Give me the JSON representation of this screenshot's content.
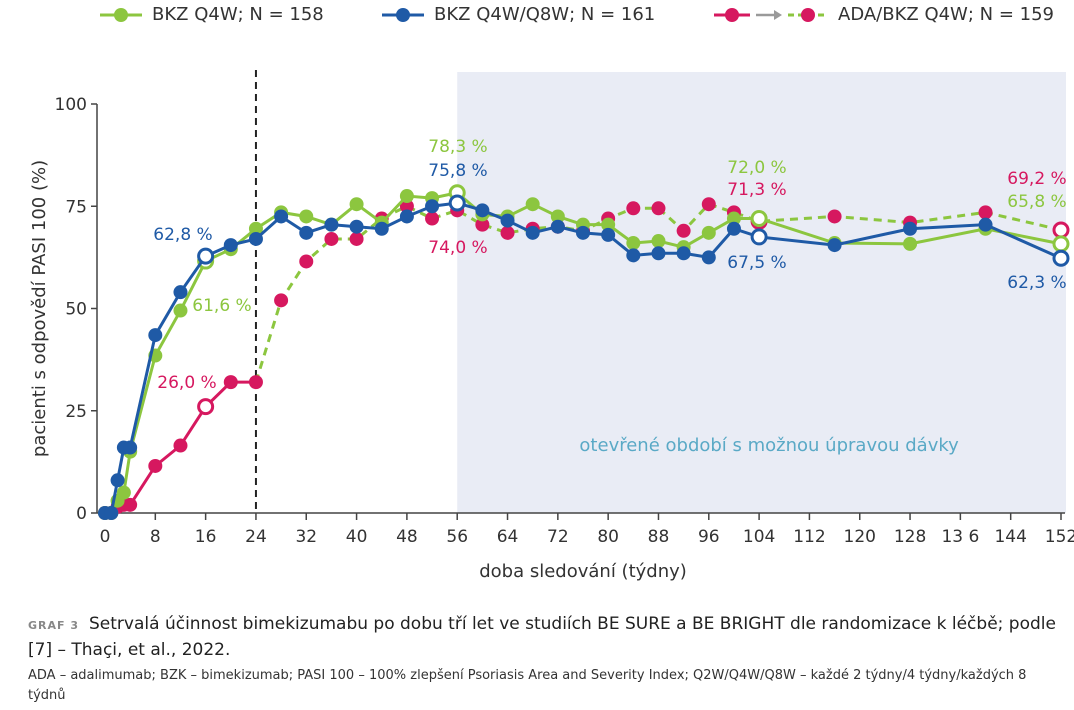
{
  "chart_data": {
    "type": "line",
    "title": "",
    "xlabel": "doba sledování (týdny)",
    "ylabel": "pacienti s odpovědí PASI 100 (%)",
    "xlim": [
      0,
      152
    ],
    "ylim": [
      0,
      100
    ],
    "x_ticks": [
      0,
      8,
      16,
      24,
      32,
      40,
      48,
      56,
      64,
      72,
      80,
      88,
      96,
      104,
      112,
      120,
      128,
      136,
      144,
      152
    ],
    "x_tick_labels": [
      "0",
      "8",
      "16",
      "24",
      "32",
      "40",
      "48",
      "56",
      "64",
      "72",
      "80",
      "88",
      "96",
      "104",
      "112",
      "120",
      "128",
      "13 6",
      "144",
      "152"
    ],
    "y_ticks": [
      0,
      25,
      50,
      75,
      100
    ],
    "y_tick_labels": [
      "0",
      "25",
      "50",
      "75",
      "100"
    ],
    "vline_week": 24,
    "shaded_region": {
      "from": 56,
      "to": 152,
      "label": "otevřené období s možnou úpravou dávky"
    },
    "series": [
      {
        "name": "BKZ Q4W; N = 158",
        "color": "#8cc63f",
        "style": "solid",
        "x": [
          0,
          1,
          2,
          3,
          4,
          8,
          12,
          16,
          20,
          24,
          28,
          32,
          36,
          40,
          44,
          48,
          52,
          56,
          60,
          64,
          68,
          72,
          76,
          80,
          84,
          88,
          92,
          96,
          100,
          104,
          116,
          128,
          140,
          152
        ],
        "y": [
          0,
          0,
          3,
          5,
          15,
          38.5,
          49.5,
          61.6,
          64.5,
          69.5,
          73.5,
          72.5,
          70.5,
          75.5,
          71,
          77.5,
          77,
          78.3,
          73,
          72.5,
          75.5,
          72.5,
          70.5,
          70.5,
          66,
          66.5,
          65,
          68.5,
          72.0,
          72.0,
          66,
          65.8,
          69.5,
          65.8
        ],
        "hollow": [
          16,
          56,
          104,
          152
        ]
      },
      {
        "name": "BKZ Q4W/Q8W; N = 161",
        "color": "#1f5aa6",
        "style": "solid",
        "x": [
          0,
          1,
          2,
          3,
          4,
          8,
          12,
          16,
          20,
          24,
          28,
          32,
          36,
          40,
          44,
          48,
          52,
          56,
          60,
          64,
          68,
          72,
          76,
          80,
          84,
          88,
          92,
          96,
          100,
          104,
          116,
          128,
          140,
          152
        ],
        "y": [
          0,
          0,
          8,
          16,
          16,
          43.5,
          54,
          62.8,
          65.5,
          67,
          72.5,
          68.5,
          70.5,
          70,
          69.5,
          72.5,
          75,
          75.8,
          74,
          71.5,
          68.5,
          70,
          68.5,
          68,
          63,
          63.5,
          63.5,
          62.5,
          69.5,
          67.5,
          65.5,
          69.5,
          70.5,
          62.3
        ],
        "hollow": [
          16,
          56,
          104,
          152
        ]
      },
      {
        "name": "ADA/BKZ Q4W; N = 159",
        "color": "#d6185f",
        "style": "solid-then-dashed",
        "switch_week": 24,
        "x": [
          0,
          1,
          2,
          3,
          4,
          8,
          12,
          16,
          20,
          24,
          28,
          32,
          36,
          40,
          44,
          48,
          52,
          56,
          60,
          64,
          68,
          72,
          76,
          80,
          84,
          88,
          92,
          96,
          100,
          104,
          116,
          128,
          140,
          152
        ],
        "y": [
          0,
          0,
          1.5,
          2,
          2,
          11.5,
          16.5,
          26.0,
          32,
          32,
          52,
          61.5,
          67,
          67,
          72,
          75,
          72,
          74.0,
          70.5,
          68.5,
          69.5,
          70,
          69,
          72,
          74.5,
          74.5,
          69,
          75.5,
          73.5,
          71.3,
          72.5,
          71,
          73.5,
          69.2
        ],
        "hollow": [
          16,
          104,
          152
        ]
      }
    ],
    "data_labels": [
      {
        "text": "78,3 %",
        "series": 0
      },
      {
        "text": "75,8 %",
        "series": 1
      },
      {
        "text": "74,0 %",
        "series": 2
      },
      {
        "text": "62,8 %",
        "series": 1
      },
      {
        "text": "61,6 %",
        "series": 0
      },
      {
        "text": "26,0 %",
        "series": 2
      },
      {
        "text": "72,0 %",
        "series": 0
      },
      {
        "text": "71,3 %",
        "series": 2
      },
      {
        "text": "67,5 %",
        "series": 1
      },
      {
        "text": "69,2 %",
        "series": 2
      },
      {
        "text": "65,8 %",
        "series": 0
      },
      {
        "text": "62,3 %",
        "series": 1
      }
    ]
  },
  "legend": {
    "items": [
      {
        "label": "BKZ Q4W; N = 158",
        "color": "#8cc63f"
      },
      {
        "label": "BKZ Q4W/Q8W; N = 161",
        "color": "#1f5aa6"
      },
      {
        "label": "ADA/BKZ Q4W; N = 159",
        "color": "#d6185f",
        "arrow_color": "#9a9a9a",
        "dashed_color": "#8cc63f"
      }
    ]
  },
  "caption": {
    "tag": "GRAF 3",
    "text": "Setrvalá účinnost bimekizumabu po dobu tří let ve studiích BE SURE a BE BRIGHT dle randomizace k léčbě; podle [7] – Thaçi, et al., 2022."
  },
  "footnote": {
    "text": "ADA – adalimumab; BZK – bimekizumab; PASI 100 – 100% zlepšení Psoriasis Area and Severity Index; Q2W/Q4W/Q8W – každé 2 týdny/4 týdny/každých 8 týdnů"
  }
}
